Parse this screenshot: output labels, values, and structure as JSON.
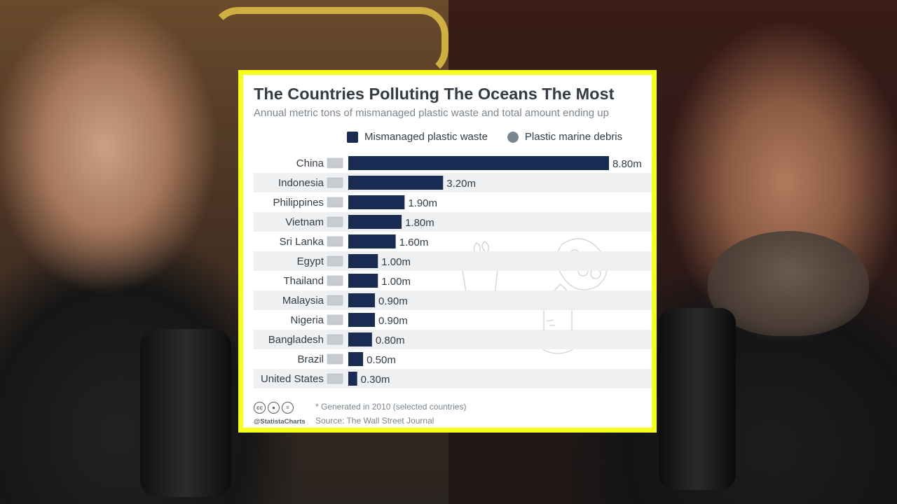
{
  "chart_data": {
    "type": "bar",
    "orientation": "horizontal",
    "title": "The Countries Polluting The Oceans The Most",
    "subtitle": "Annual metric tons of mismanaged plastic waste and total amount ending up",
    "legend": [
      "Mismanaged plastic waste",
      "Plastic marine debris"
    ],
    "categories": [
      "China",
      "Indonesia",
      "Philippines",
      "Vietnam",
      "Sri Lanka",
      "Egypt",
      "Thailand",
      "Malaysia",
      "Nigeria",
      "Bangladesh",
      "Brazil",
      "United States"
    ],
    "series": [
      {
        "name": "Mismanaged plastic waste",
        "values": [
          8.8,
          3.2,
          1.9,
          1.8,
          1.6,
          1.0,
          1.0,
          0.9,
          0.9,
          0.8,
          0.5,
          0.3
        ],
        "labels": [
          "8.80m",
          "3.20m",
          "1.90m",
          "1.80m",
          "1.60m",
          "1.00m",
          "1.00m",
          "0.90m",
          "0.90m",
          "0.80m",
          "0.50m",
          "0.30m"
        ],
        "color": "#1a2b53"
      }
    ],
    "legend_colors": [
      "#1a2b53",
      "#7b858d"
    ],
    "xlim": [
      0,
      8.8
    ],
    "grid": false,
    "row_stripes": true,
    "note": "* Generated in 2010 (selected countries)",
    "source": "Source: The Wall Street Journal",
    "credit": "@StatistaCharts",
    "license_icons": [
      "cc-icon",
      "person-icon",
      "equals-icon"
    ]
  },
  "colors": {
    "card_border": "#f4ff1a",
    "bar": "#1a2b53",
    "stripe": "#eef0f2"
  }
}
